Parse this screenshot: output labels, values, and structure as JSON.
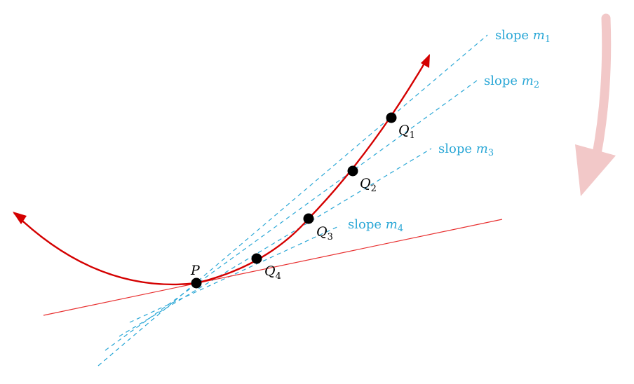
{
  "colors": {
    "curve": "#d40000",
    "tangent": "#e83030",
    "secant": "#2aa7d6",
    "point": "#000000",
    "arrow": "#f2c8c8"
  },
  "point_labels": {
    "P": {
      "letter": "P",
      "sub": ""
    },
    "Q1": {
      "letter": "Q",
      "sub": "1"
    },
    "Q2": {
      "letter": "Q",
      "sub": "2"
    },
    "Q3": {
      "letter": "Q",
      "sub": "3"
    },
    "Q4": {
      "letter": "Q",
      "sub": "4"
    }
  },
  "secant_labels": [
    {
      "prefix": "slope ",
      "var": "m",
      "sub": "1"
    },
    {
      "prefix": "slope ",
      "var": "m",
      "sub": "2"
    },
    {
      "prefix": "slope ",
      "var": "m",
      "sub": "3"
    },
    {
      "prefix": "slope ",
      "var": "m",
      "sub": "4"
    }
  ],
  "icons": {
    "direction": "down-arrow-icon"
  }
}
